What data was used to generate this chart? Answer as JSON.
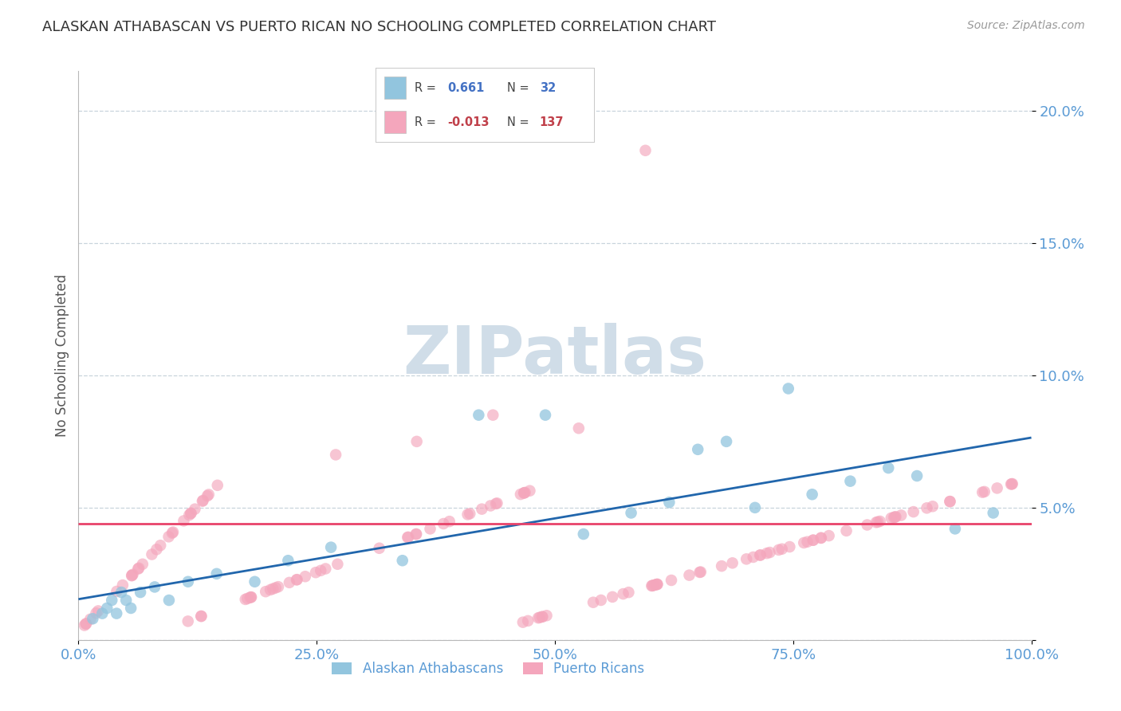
{
  "title": "ALASKAN ATHABASCAN VS PUERTO RICAN NO SCHOOLING COMPLETED CORRELATION CHART",
  "source_text": "Source: ZipAtlas.com",
  "ylabel": "No Schooling Completed",
  "xlim": [
    0.0,
    1.0
  ],
  "ylim": [
    0.0,
    0.215
  ],
  "yticks": [
    0.0,
    0.05,
    0.1,
    0.15,
    0.2
  ],
  "ytick_labels": [
    "",
    "5.0%",
    "10.0%",
    "15.0%",
    "20.0%"
  ],
  "xticks": [
    0.0,
    0.25,
    0.5,
    0.75,
    1.0
  ],
  "xtick_labels": [
    "0.0%",
    "25.0%",
    "50.0%",
    "75.0%",
    "100.0%"
  ],
  "blue_R": 0.661,
  "blue_N": 32,
  "pink_R": -0.013,
  "pink_N": 137,
  "blue_color": "#92c5de",
  "pink_color": "#f4a6bc",
  "blue_line_color": "#2166ac",
  "pink_line_color": "#e8436a",
  "watermark": "ZIPatlas",
  "watermark_color": "#d0dde8",
  "legend_label_blue": "Alaskan Athabascans",
  "legend_label_pink": "Puerto Ricans",
  "background_color": "#ffffff",
  "grid_color": "#c8d4dc",
  "title_color": "#333333",
  "axis_label_color": "#555555",
  "tick_label_color": "#5b9bd5",
  "legend_text_color": "#444444",
  "legend_blue_val_color": "#4472c4",
  "legend_pink_val_color": "#c0404a"
}
